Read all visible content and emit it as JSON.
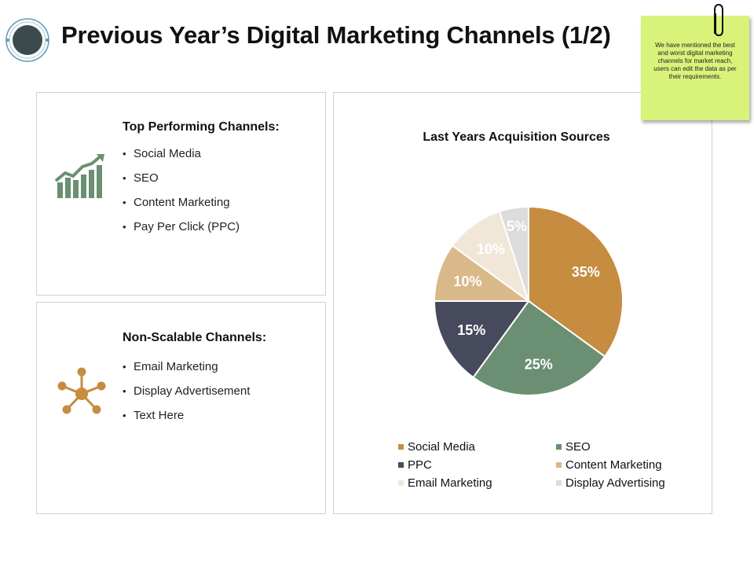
{
  "page": {
    "title": "Previous Year’s Digital Marketing Channels (1/2)"
  },
  "sticky_note": {
    "text": "We have mentioned the best and worst digital marketing channels for market reach, users can edit the data as per their requirements."
  },
  "panels": {
    "top": {
      "heading": "Top Performing Channels:",
      "icon": "growth-chart-icon",
      "items": [
        "Social Media",
        "SEO",
        "Content Marketing",
        "Pay Per Click (PPC)"
      ]
    },
    "bottom": {
      "heading": "Non-Scalable Channels:",
      "icon": "network-hub-icon",
      "items": [
        "Email Marketing",
        "Display Advertisement",
        "Text Here"
      ]
    }
  },
  "colors": {
    "accent_green": "#6a8f72",
    "accent_brown": "#c68c3f",
    "sticky": "#d9f27a"
  },
  "chart_data": {
    "type": "pie",
    "title": "Last Years Acquisition Sources",
    "legend_position": "bottom",
    "start_angle_deg": 0,
    "direction": "clockwise",
    "slices": [
      {
        "label": "Social Media",
        "value": 35,
        "display": "35%",
        "color": "#c68c3f",
        "label_color": "#ffffff"
      },
      {
        "label": "SEO",
        "value": 25,
        "display": "25%",
        "color": "#6a8f72",
        "label_color": "#ffffff"
      },
      {
        "label": "PPC",
        "value": 15,
        "display": "15%",
        "color": "#474a5c",
        "label_color": "#ffffff"
      },
      {
        "label": "Content Marketing",
        "value": 10,
        "display": "10%",
        "color": "#d9b98a",
        "label_color": "#ffffff"
      },
      {
        "label": "Email Marketing",
        "value": 10,
        "display": "10%",
        "color": "#f1e7d8",
        "label_color": "#ffffff"
      },
      {
        "label": "Display Advertising",
        "value": 5,
        "display": "5%",
        "color": "#dcdcdc",
        "label_color": "#ffffff"
      }
    ]
  }
}
